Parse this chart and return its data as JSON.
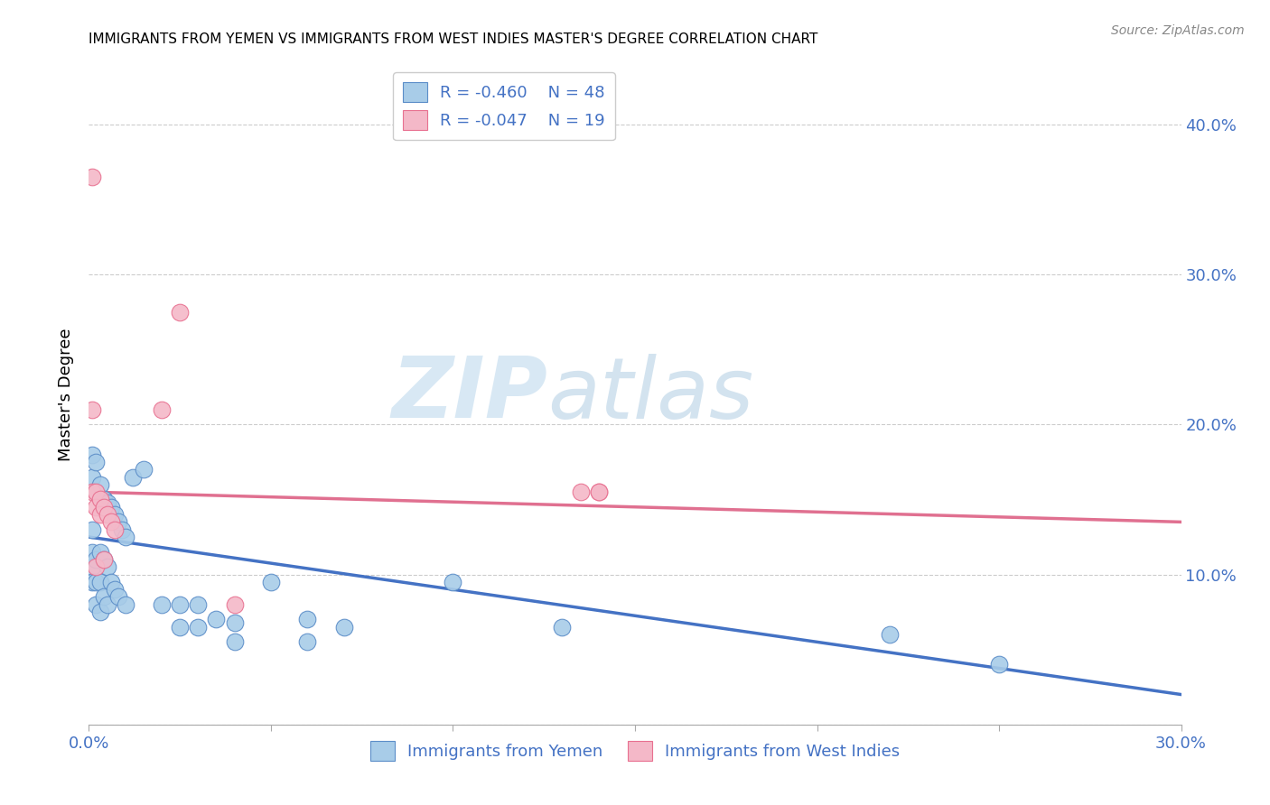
{
  "title": "IMMIGRANTS FROM YEMEN VS IMMIGRANTS FROM WEST INDIES MASTER'S DEGREE CORRELATION CHART",
  "source": "Source: ZipAtlas.com",
  "ylabel": "Master's Degree",
  "legend_r1": "-0.460",
  "legend_n1": "48",
  "legend_r2": "-0.047",
  "legend_n2": "19",
  "legend_label1": "Immigrants from Yemen",
  "legend_label2": "Immigrants from West Indies",
  "color_blue_fill": "#A8CCE8",
  "color_pink_fill": "#F4B8C8",
  "color_blue_edge": "#5B8DC8",
  "color_pink_edge": "#E87090",
  "color_blue_line": "#4472C4",
  "color_pink_line": "#E07090",
  "color_text_blue": "#4472C4",
  "xlim": [
    0.0,
    0.3
  ],
  "ylim": [
    0.0,
    0.44
  ],
  "xticks": [
    0.0,
    0.05,
    0.1,
    0.15,
    0.2,
    0.25,
    0.3
  ],
  "yticks": [
    0.0,
    0.1,
    0.2,
    0.3,
    0.4
  ],
  "trendline_blue_x0": 0.0,
  "trendline_blue_y0": 0.125,
  "trendline_blue_x1": 0.3,
  "trendline_blue_y1": 0.02,
  "trendline_pink_x0": 0.0,
  "trendline_pink_y0": 0.155,
  "trendline_pink_x1": 0.3,
  "trendline_pink_y1": 0.135,
  "watermark_zip": "ZIP",
  "watermark_atlas": "atlas",
  "grid_color": "#CCCCCC",
  "background_color": "#FFFFFF",
  "blue_x": [
    0.001,
    0.001,
    0.001,
    0.001,
    0.001,
    0.001,
    0.002,
    0.002,
    0.002,
    0.002,
    0.002,
    0.003,
    0.003,
    0.003,
    0.003,
    0.004,
    0.004,
    0.004,
    0.005,
    0.005,
    0.005,
    0.006,
    0.006,
    0.007,
    0.007,
    0.008,
    0.008,
    0.009,
    0.01,
    0.01,
    0.012,
    0.015,
    0.02,
    0.025,
    0.025,
    0.03,
    0.03,
    0.035,
    0.04,
    0.04,
    0.05,
    0.06,
    0.06,
    0.07,
    0.1,
    0.13,
    0.22,
    0.25
  ],
  "blue_y": [
    0.18,
    0.165,
    0.13,
    0.115,
    0.105,
    0.095,
    0.175,
    0.155,
    0.11,
    0.095,
    0.08,
    0.16,
    0.115,
    0.095,
    0.075,
    0.15,
    0.11,
    0.085,
    0.148,
    0.105,
    0.08,
    0.145,
    0.095,
    0.14,
    0.09,
    0.135,
    0.085,
    0.13,
    0.125,
    0.08,
    0.165,
    0.17,
    0.08,
    0.08,
    0.065,
    0.08,
    0.065,
    0.07,
    0.068,
    0.055,
    0.095,
    0.07,
    0.055,
    0.065,
    0.095,
    0.065,
    0.06,
    0.04
  ],
  "pink_x": [
    0.001,
    0.001,
    0.001,
    0.002,
    0.002,
    0.002,
    0.003,
    0.003,
    0.004,
    0.004,
    0.005,
    0.006,
    0.007,
    0.02,
    0.025,
    0.04,
    0.135,
    0.14,
    0.14
  ],
  "pink_y": [
    0.365,
    0.21,
    0.155,
    0.155,
    0.145,
    0.105,
    0.15,
    0.14,
    0.145,
    0.11,
    0.14,
    0.135,
    0.13,
    0.21,
    0.275,
    0.08,
    0.155,
    0.155,
    0.155
  ]
}
